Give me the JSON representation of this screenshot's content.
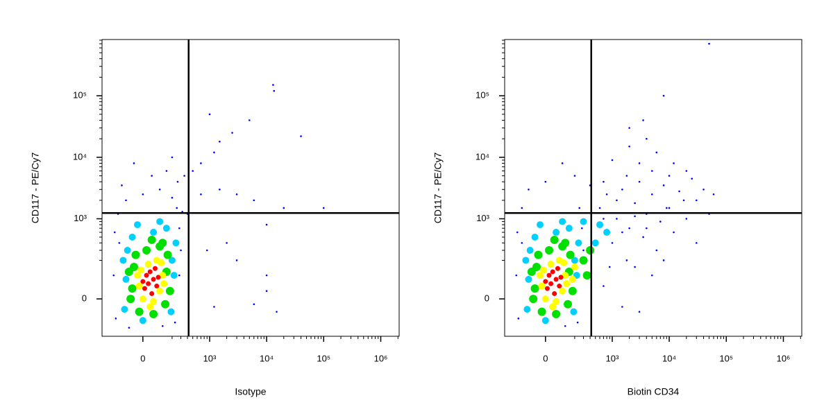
{
  "chart_data": [
    {
      "type": "scatter",
      "x_label": "Isotype",
      "y_label": "CD117 - PE/Cy7",
      "xscale": "biexponential",
      "yscale": "biexponential",
      "xlim": [
        -340,
        2100000
      ],
      "ylim": [
        -190,
        820000
      ],
      "xticks": [
        0,
        {
          "value": 1000,
          "label": "10³"
        },
        {
          "value": 10000,
          "label": "10⁴"
        },
        {
          "value": 100000,
          "label": "10⁵"
        },
        {
          "value": 1000000,
          "label": "10⁶"
        }
      ],
      "yticks": [
        0,
        {
          "value": 1000,
          "label": "10³"
        },
        {
          "value": 10000,
          "label": "10⁴"
        },
        {
          "value": 100000,
          "label": "10⁵"
        }
      ],
      "gates": {
        "x": 420,
        "y": 1240
      },
      "series": [
        {
          "color": "#0000ff",
          "x": [
            -200,
            -180,
            -150,
            -160,
            -100,
            0,
            100,
            200,
            250,
            280,
            300,
            -130,
            50,
            150,
            -50,
            200,
            260,
            -190,
            120,
            -80,
            230,
            280,
            320,
            350,
            500,
            700,
            1200,
            1500,
            2500,
            1000,
            13000,
            13500,
            40000,
            5000,
            1500,
            3000,
            6000,
            100000,
            20000,
            10000,
            2000,
            3000,
            10000,
            10000,
            15000,
            6000,
            900,
            1200,
            700,
            400
          ],
          "values": [
            100,
            -80,
            400,
            1200,
            2000,
            2500,
            3000,
            2200,
            1500,
            700,
            300,
            3500,
            5000,
            6000,
            8000,
            10000,
            4000,
            600,
            -120,
            -130,
            -100,
            100,
            1300,
            5000,
            6000,
            8000,
            12000,
            18000,
            25000,
            50000,
            150000,
            120000,
            22000,
            40000,
            3000,
            2500,
            2000,
            1500,
            1500,
            800,
            400,
            200,
            100,
            30,
            -50,
            -20,
            300,
            -30,
            2500,
            1200
          ]
        },
        {
          "color": "#00d0ff",
          "x": [
            -100,
            -90,
            200,
            -60,
            60,
            150,
            -110,
            190,
            0,
            220,
            -30,
            100,
            -120,
            240
          ],
          "values": [
            80,
            300,
            200,
            500,
            600,
            700,
            -40,
            -50,
            -90,
            100,
            800,
            900,
            200,
            400
          ]
        },
        {
          "color": "#00e000",
          "x": [
            -60,
            -50,
            150,
            160,
            -40,
            20,
            100,
            -70,
            140,
            60,
            -20,
            120,
            50,
            -80,
            180
          ],
          "values": [
            40,
            150,
            120,
            250,
            250,
            300,
            350,
            0,
            -20,
            -60,
            -50,
            400,
            450,
            120,
            30
          ]
        },
        {
          "color": "#ffff00",
          "x": [
            -20,
            100,
            120,
            30,
            60,
            -10,
            110,
            0,
            80,
            40,
            -30,
            130
          ],
          "values": [
            50,
            30,
            100,
            170,
            -10,
            130,
            180,
            0,
            200,
            -30,
            100,
            60
          ]
        },
        {
          "color": "#ff0000",
          "x": [
            30,
            60,
            10,
            40,
            80,
            20,
            50,
            70,
            0,
            90
          ],
          "values": [
            60,
            80,
            40,
            120,
            50,
            100,
            20,
            140,
            70,
            90
          ]
        }
      ]
    },
    {
      "type": "scatter",
      "x_label": "Biotin CD34",
      "y_label": "CD117 - PE/Cy7",
      "xscale": "biexponential",
      "yscale": "biexponential",
      "xlim": [
        -340,
        2100000
      ],
      "ylim": [
        -190,
        820000
      ],
      "xticks": [
        0,
        {
          "value": 1000,
          "label": "10³"
        },
        {
          "value": 10000,
          "label": "10⁴"
        },
        {
          "value": 100000,
          "label": "10⁵"
        },
        {
          "value": 1000000,
          "label": "10⁶"
        }
      ],
      "yticks": [
        0,
        {
          "value": 1000,
          "label": "10³"
        },
        {
          "value": 10000,
          "label": "10⁴"
        },
        {
          "value": 100000,
          "label": "10⁵"
        }
      ],
      "gates": {
        "x": 420,
        "y": 1240
      },
      "series": [
        {
          "color": "#0000ff",
          "x": [
            -200,
            -180,
            -150,
            250,
            280,
            300,
            -190,
            120,
            230,
            600,
            800,
            1000,
            1200,
            1500,
            1800,
            2000,
            2500,
            3000,
            3500,
            4000,
            5000,
            6000,
            7000,
            8000,
            10000,
            12000,
            15000,
            20000,
            25000,
            30000,
            40000,
            50000,
            20000,
            10000,
            5000,
            3000,
            2000,
            4000,
            3500,
            8000,
            50000,
            1500,
            2500,
            5000,
            8000,
            3000,
            1500,
            700,
            900,
            1200,
            700,
            400,
            200,
            -100,
            0,
            100,
            -150,
            30000,
            60000,
            12000,
            6000,
            2000,
            1000,
            700,
            4000,
            9000,
            18000,
            2500,
            1800
          ],
          "values": [
            100,
            -80,
            400,
            1500,
            700,
            300,
            600,
            -120,
            -100,
            1500,
            2500,
            400,
            1000,
            3000,
            200,
            700,
            1800,
            4000,
            500,
            1200,
            2500,
            300,
            900,
            3500,
            1500,
            600,
            2800,
            1000,
            4500,
            2000,
            3000,
            1200,
            6000,
            5000,
            6000,
            8000,
            15000,
            20000,
            40000,
            100000,
            700000,
            600,
            150,
            100,
            200,
            -50,
            -30,
            50,
            150,
            2000,
            4000,
            3500,
            5000,
            3000,
            4000,
            8000,
            1500,
            400,
            2500,
            8000,
            12000,
            30000,
            9000,
            1000,
            700,
            1500,
            2000,
            1100,
            5000
          ]
        },
        {
          "color": "#00d0ff",
          "x": [
            -100,
            -90,
            200,
            -60,
            60,
            150,
            -110,
            190,
            0,
            220,
            -30,
            100,
            -120,
            240,
            500,
            600,
            800,
            300
          ],
          "values": [
            80,
            300,
            200,
            500,
            600,
            700,
            -40,
            -50,
            -90,
            100,
            800,
            900,
            200,
            400,
            400,
            800,
            600,
            900
          ]
        },
        {
          "color": "#00e000",
          "x": [
            -60,
            -50,
            150,
            160,
            -40,
            20,
            100,
            -70,
            140,
            60,
            -20,
            120,
            50,
            -80,
            180,
            300,
            400,
            350
          ],
          "values": [
            40,
            150,
            120,
            250,
            250,
            300,
            350,
            0,
            -20,
            -60,
            -50,
            400,
            450,
            120,
            30,
            200,
            300,
            100
          ]
        },
        {
          "color": "#ffff00",
          "x": [
            -20,
            100,
            120,
            30,
            60,
            -10,
            110,
            0,
            80,
            40,
            -30,
            130,
            200,
            180
          ],
          "values": [
            50,
            30,
            100,
            170,
            -10,
            130,
            180,
            0,
            200,
            -30,
            100,
            60,
            150,
            80
          ]
        },
        {
          "color": "#ff0000",
          "x": [
            30,
            60,
            10,
            40,
            80,
            20,
            50,
            70,
            0,
            90
          ],
          "values": [
            60,
            80,
            40,
            120,
            50,
            100,
            20,
            140,
            70,
            90
          ]
        }
      ]
    }
  ]
}
